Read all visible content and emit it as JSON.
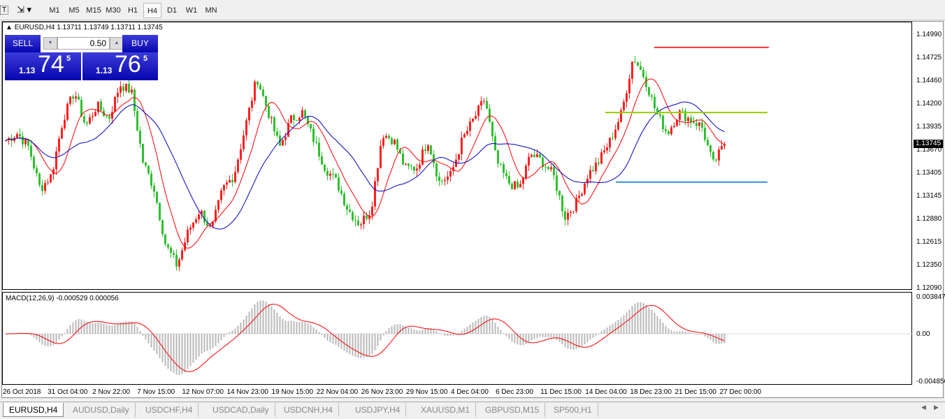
{
  "toolbar": {
    "timeframes": [
      "M1",
      "M5",
      "M15",
      "M30",
      "H1",
      "H4",
      "D1",
      "W1",
      "MN"
    ],
    "active": "H4"
  },
  "chart": {
    "title": "EURUSD,H4  1.13711 1.13749 1.13711 1.13745",
    "current_price": "1.13745",
    "price_axis": [
      "1.14990",
      "1.14725",
      "1.14460",
      "1.14200",
      "1.13935",
      "1.13670",
      "1.13405",
      "1.13145",
      "1.12880",
      "1.12615",
      "1.12350",
      "1.12090"
    ],
    "time_axis": [
      "26 Oct 2018",
      "31 Oct 04:00",
      "2 Nov 22:00",
      "7 Nov 15:00",
      "12 Nov 07:00",
      "14 Nov 23:00",
      "19 Nov 15:00",
      "22 Nov 04:00",
      "26 Nov 23:00",
      "29 Nov 15:00",
      "4 Dec 04:00",
      "6 Dec 23:00",
      "11 Dec 15:00",
      "14 Dec 04:00",
      "18 Dec 23:00",
      "21 Dec 15:00",
      "27 Dec 00:00"
    ],
    "hlines": [
      {
        "price": 1.14855,
        "color": "#ff3030"
      },
      {
        "price": 1.14108,
        "color": "#99cc00"
      },
      {
        "price": 1.1331,
        "color": "#3090e0"
      }
    ],
    "colors": {
      "bull": "#ff2020",
      "bear": "#30c030",
      "ma_fast": "#ff0000",
      "ma_slow": "#0000c0",
      "macd_hist": "#b8b8b8",
      "macd_signal": "#ff0000"
    },
    "closes": [
      1.1379,
      1.1387,
      1.1371,
      1.1323,
      1.1339,
      1.1403,
      1.1435,
      1.1395,
      1.1419,
      1.1403,
      1.1443,
      1.1435,
      1.1355,
      1.1323,
      1.1259,
      1.1235,
      1.1275,
      1.1299,
      1.1275,
      1.1323,
      1.1339,
      1.1395,
      1.1451,
      1.1411,
      1.1371,
      1.1403,
      1.1411,
      1.1379,
      1.1347,
      1.1331,
      1.1299,
      1.1283,
      1.1299,
      1.1387,
      1.1379,
      1.1347,
      1.1347,
      1.1379,
      1.1331,
      1.1339,
      1.1379,
      1.1403,
      1.1427,
      1.1355,
      1.1331,
      1.1323,
      1.1363,
      1.1355,
      1.1339,
      1.1291,
      1.1307,
      1.1339,
      1.1355,
      1.1379,
      1.1411,
      1.1475,
      1.1451,
      1.1411,
      1.1387,
      1.1411,
      1.1403,
      1.1395,
      1.1351,
      1.13745
    ]
  },
  "order_panel": {
    "sell_label": "SELL",
    "buy_label": "BUY",
    "lot": "0.50",
    "sell_big": "74",
    "sell_small": "1.13",
    "sell_sup": "5",
    "buy_big": "76",
    "buy_small": "1.13",
    "buy_sup": "5"
  },
  "macd": {
    "label": "MACD(12,26,9) -0.000529 0.000056",
    "axis": [
      "0.003847",
      "0.00",
      "-0.004856"
    ]
  },
  "tabs": [
    "EURUSD,H4",
    "AUDUSD,Daily",
    "USDCHF,H4",
    "USDCAD,Daily",
    "USDCNH,H4",
    "USDJPY,H4",
    "XAUUSD,M1",
    "GBPUSD,M15",
    "SP500,H1"
  ]
}
